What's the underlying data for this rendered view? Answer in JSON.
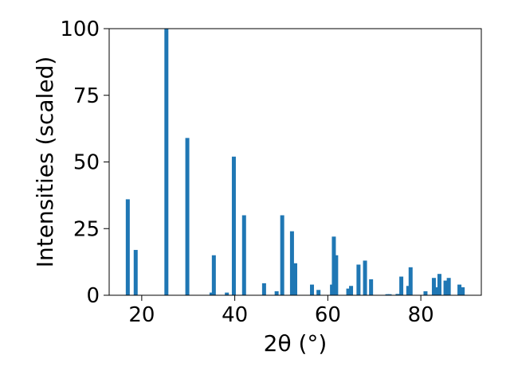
{
  "chart_data": {
    "type": "bar",
    "title": "",
    "xlabel": "2θ (°)",
    "ylabel": "Intensities (scaled)",
    "xlim": [
      13.0,
      93.0
    ],
    "ylim": [
      0,
      100
    ],
    "grid": false,
    "legend": "none",
    "x_ticks": [
      "20",
      "40",
      "60",
      "80"
    ],
    "y_ticks": [
      "0",
      "25",
      "50",
      "75",
      "100"
    ],
    "bar_color": "#1f77b4",
    "x": [
      17.0,
      18.7,
      25.3,
      29.8,
      35.0,
      35.5,
      38.3,
      39.8,
      42.0,
      46.3,
      49.0,
      50.2,
      52.3,
      53.0,
      56.6,
      58.0,
      60.9,
      61.3,
      61.8,
      64.4,
      65.0,
      66.6,
      68.0,
      69.3,
      72.8,
      73.3,
      75.0,
      75.8,
      77.3,
      77.8,
      81.0,
      82.8,
      83.3,
      84.0,
      85.3,
      86.0,
      88.3,
      89.0
    ],
    "values": [
      36,
      17,
      100,
      59,
      1,
      15,
      1,
      52,
      30,
      4.5,
      1.5,
      30,
      24,
      12,
      4,
      2,
      4,
      22,
      15,
      2.5,
      3.5,
      11.5,
      13,
      6,
      0.4,
      0.4,
      0.5,
      7,
      3.5,
      10.5,
      1.5,
      6.5,
      3,
      8,
      5.5,
      6.5,
      4,
      3
    ]
  }
}
